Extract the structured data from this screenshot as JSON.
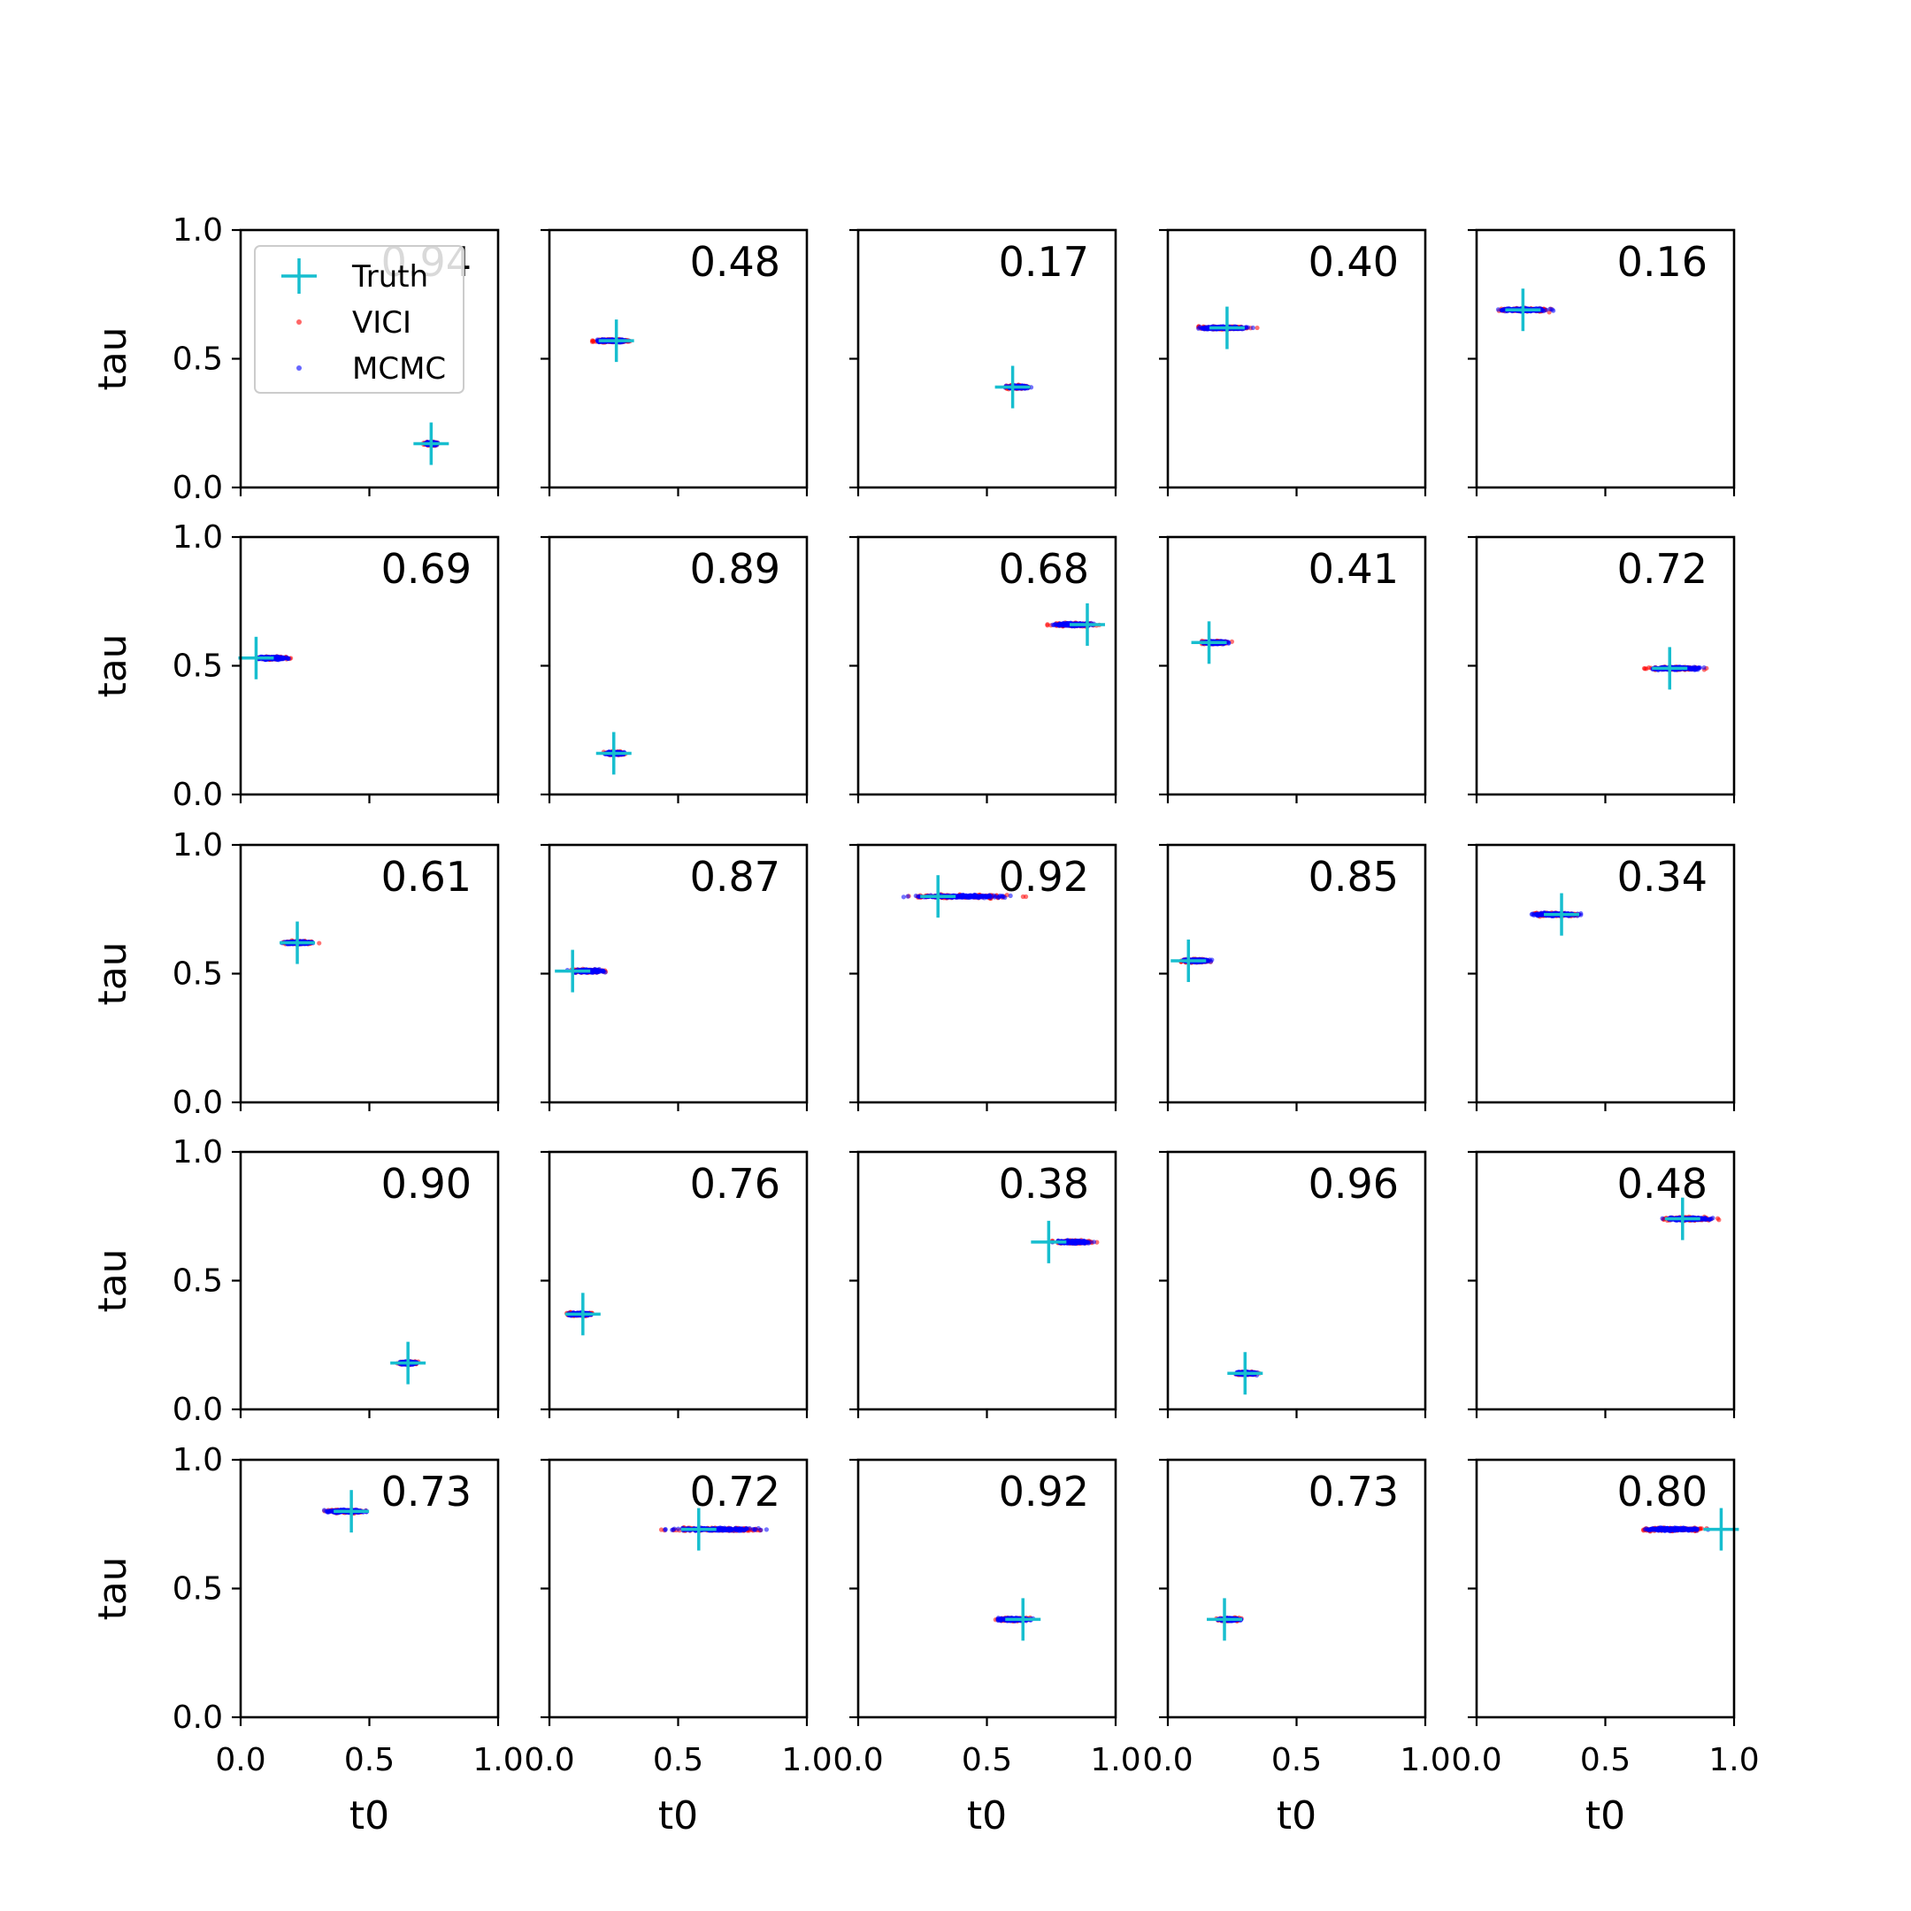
{
  "chart_data": {
    "type": "scatter",
    "layout": "grid",
    "rows": 5,
    "cols": 5,
    "xlabel": "t0",
    "ylabel": "tau",
    "xlim": [
      0,
      1
    ],
    "ylim": [
      0,
      1
    ],
    "xticks": [
      "0.0",
      "0.5",
      "1.0"
    ],
    "yticks": [
      "0.0",
      "0.5",
      "1.0"
    ],
    "grid": false,
    "legend": {
      "placement": "upper-left of first panel",
      "entries": [
        {
          "label": "Truth",
          "marker": "plus",
          "color": "#17becf"
        },
        {
          "label": "VICI",
          "marker": "dot",
          "color": "#ff0000"
        },
        {
          "label": "MCMC",
          "marker": "dot",
          "color": "#0000ff"
        }
      ]
    },
    "panels": [
      {
        "label": "0.94",
        "truth": [
          0.74,
          0.17
        ],
        "t0_range": [
          0.69,
          0.79
        ],
        "tau": 0.17
      },
      {
        "label": "0.48",
        "truth": [
          0.26,
          0.57
        ],
        "t0_range": [
          0.11,
          0.37
        ],
        "tau": 0.57
      },
      {
        "label": "0.17",
        "truth": [
          0.6,
          0.39
        ],
        "t0_range": [
          0.53,
          0.71
        ],
        "tau": 0.39
      },
      {
        "label": "0.40",
        "truth": [
          0.23,
          0.62
        ],
        "t0_range": [
          0.0,
          0.43
        ],
        "tau": 0.62
      },
      {
        "label": "0.16",
        "truth": [
          0.18,
          0.69
        ],
        "t0_range": [
          0.0,
          0.37
        ],
        "tau": 0.69
      },
      {
        "label": "0.69",
        "truth": [
          0.06,
          0.53
        ],
        "t0_range": [
          0.0,
          0.25
        ],
        "tau": 0.53
      },
      {
        "label": "0.89",
        "truth": [
          0.25,
          0.16
        ],
        "t0_range": [
          0.18,
          0.33
        ],
        "tau": 0.16
      },
      {
        "label": "0.68",
        "truth": [
          0.89,
          0.66
        ],
        "t0_range": [
          0.67,
          1.0
        ],
        "tau": 0.66
      },
      {
        "label": "0.41",
        "truth": [
          0.16,
          0.59
        ],
        "t0_range": [
          0.08,
          0.29
        ],
        "tau": 0.59
      },
      {
        "label": "0.72",
        "truth": [
          0.75,
          0.49
        ],
        "t0_range": [
          0.56,
          0.99
        ],
        "tau": 0.49
      },
      {
        "label": "0.61",
        "truth": [
          0.22,
          0.62
        ],
        "t0_range": [
          0.1,
          0.35
        ],
        "tau": 0.62
      },
      {
        "label": "0.87",
        "truth": [
          0.09,
          0.51
        ],
        "t0_range": [
          0.02,
          0.28
        ],
        "tau": 0.51
      },
      {
        "label": "0.92",
        "truth": [
          0.31,
          0.8
        ],
        "t0_range": [
          0.0,
          0.81
        ],
        "tau": 0.8
      },
      {
        "label": "0.85",
        "truth": [
          0.08,
          0.55
        ],
        "t0_range": [
          0.0,
          0.22
        ],
        "tau": 0.55
      },
      {
        "label": "0.34",
        "truth": [
          0.33,
          0.73
        ],
        "t0_range": [
          0.12,
          0.5
        ],
        "tau": 0.73
      },
      {
        "label": "0.90",
        "truth": [
          0.65,
          0.18
        ],
        "t0_range": [
          0.58,
          0.72
        ],
        "tau": 0.18
      },
      {
        "label": "0.76",
        "truth": [
          0.13,
          0.37
        ],
        "t0_range": [
          0.02,
          0.22
        ],
        "tau": 0.37
      },
      {
        "label": "0.38",
        "truth": [
          0.74,
          0.65
        ],
        "t0_range": [
          0.69,
          0.98
        ],
        "tau": 0.65
      },
      {
        "label": "0.96",
        "truth": [
          0.3,
          0.14
        ],
        "t0_range": [
          0.22,
          0.39
        ],
        "tau": 0.14
      },
      {
        "label": "0.48",
        "truth": [
          0.8,
          0.74
        ],
        "t0_range": [
          0.64,
          1.0
        ],
        "tau": 0.74
      },
      {
        "label": "0.73",
        "truth": [
          0.43,
          0.8
        ],
        "t0_range": [
          0.25,
          0.57
        ],
        "tau": 0.8
      },
      {
        "label": "0.72",
        "truth": [
          0.58,
          0.73
        ],
        "t0_range": [
          0.29,
          1.0
        ],
        "tau": 0.73
      },
      {
        "label": "0.92",
        "truth": [
          0.64,
          0.38
        ],
        "t0_range": [
          0.47,
          0.74
        ],
        "tau": 0.38
      },
      {
        "label": "0.73",
        "truth": [
          0.22,
          0.38
        ],
        "t0_range": [
          0.15,
          0.33
        ],
        "tau": 0.38
      },
      {
        "label": "0.80",
        "truth": [
          0.95,
          0.73
        ],
        "t0_range": [
          0.52,
          1.0
        ],
        "tau": 0.73
      }
    ]
  }
}
